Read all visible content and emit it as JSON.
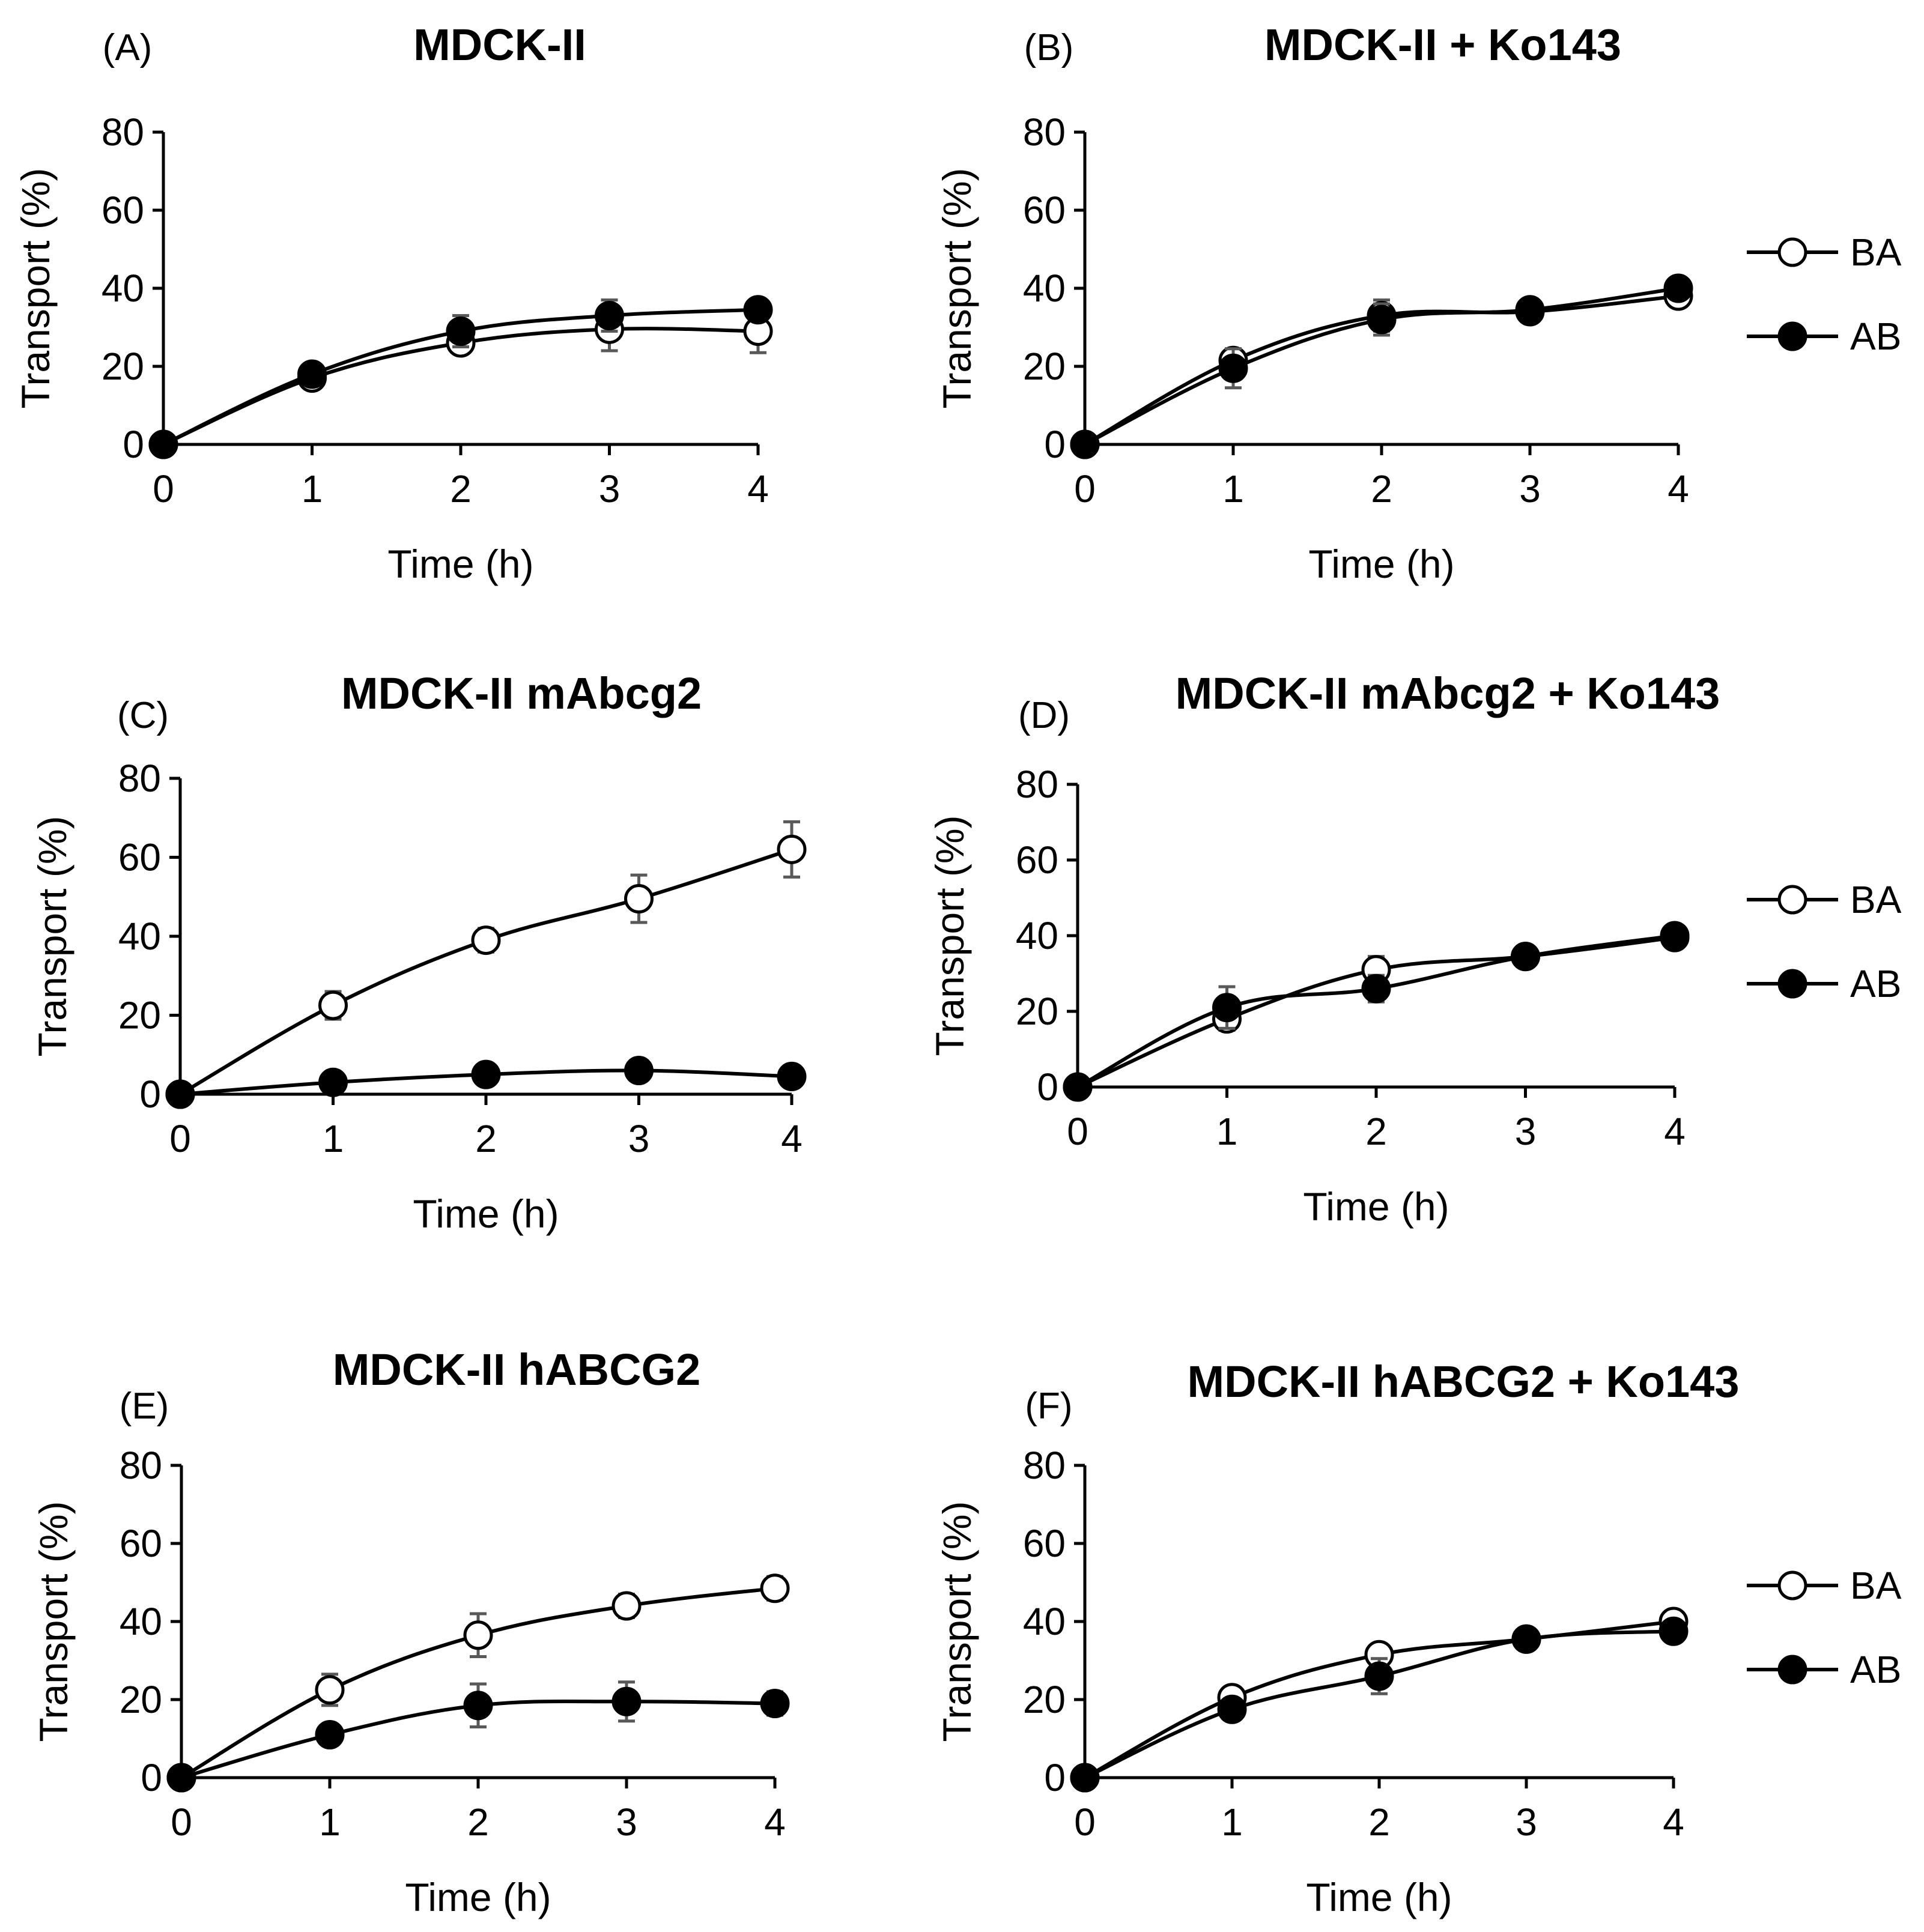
{
  "chart_data": [
    {
      "type": "line",
      "panel": "(A)",
      "title": "MDCK-II",
      "xlabel": "Time (h)",
      "ylabel": "Transport (%)",
      "x": [
        0,
        1,
        2,
        3,
        4
      ],
      "xticks": [
        "0",
        "1",
        "2",
        "3",
        "4"
      ],
      "yticks": [
        "0",
        "20",
        "40",
        "60",
        "80"
      ],
      "xlim": [
        0,
        4
      ],
      "ylim": [
        0,
        80
      ],
      "series": [
        {
          "name": "BA",
          "marker": "open-circle",
          "values": [
            0,
            17,
            26,
            29.5,
            29
          ],
          "errors": [
            0,
            1.5,
            2.5,
            5.5,
            5.5
          ]
        },
        {
          "name": "AB",
          "marker": "filled-circle",
          "values": [
            0,
            18,
            29,
            33,
            34.5
          ],
          "errors": [
            0,
            1,
            4,
            4,
            2
          ]
        }
      ],
      "legend": null
    },
    {
      "type": "line",
      "panel": "(B)",
      "title": "MDCK-II + Ko143",
      "xlabel": "Time (h)",
      "ylabel": "Transport (%)",
      "x": [
        0,
        1,
        2,
        3,
        4
      ],
      "xticks": [
        "0",
        "1",
        "2",
        "3",
        "4"
      ],
      "yticks": [
        "0",
        "20",
        "40",
        "60",
        "80"
      ],
      "xlim": [
        0,
        4
      ],
      "ylim": [
        0,
        80
      ],
      "series": [
        {
          "name": "BA",
          "marker": "open-circle",
          "values": [
            0,
            21.5,
            33,
            34,
            38
          ],
          "errors": [
            0,
            3,
            4,
            1.5,
            1.5
          ]
        },
        {
          "name": "AB",
          "marker": "filled-circle",
          "values": [
            0,
            19.5,
            32,
            34.5,
            40
          ],
          "errors": [
            0,
            5,
            4,
            1.5,
            1
          ]
        }
      ],
      "legend": {
        "position": "right",
        "entries": [
          "BA",
          "AB"
        ]
      }
    },
    {
      "type": "line",
      "panel": "(C)",
      "title": "MDCK-II mAbcg2",
      "xlabel": "Time (h)",
      "ylabel": "Transport (%)",
      "x": [
        0,
        1,
        2,
        3,
        4
      ],
      "xticks": [
        "0",
        "1",
        "2",
        "3",
        "4"
      ],
      "yticks": [
        "0",
        "20",
        "40",
        "60",
        "80"
      ],
      "xlim": [
        0,
        4
      ],
      "ylim": [
        0,
        80
      ],
      "series": [
        {
          "name": "BA",
          "marker": "open-circle",
          "values": [
            0,
            22.5,
            39,
            49.5,
            62
          ],
          "errors": [
            0,
            3.5,
            3,
            6,
            7
          ]
        },
        {
          "name": "AB",
          "marker": "filled-circle",
          "values": [
            0,
            3,
            5,
            6,
            4.5
          ],
          "errors": [
            0,
            1,
            1,
            1,
            1
          ]
        }
      ],
      "legend": null
    },
    {
      "type": "line",
      "panel": "(D)",
      "title": "MDCK-II mAbcg2 + Ko143",
      "xlabel": "Time (h)",
      "ylabel": "Transport (%)",
      "x": [
        0,
        1,
        2,
        3,
        4
      ],
      "xticks": [
        "0",
        "1",
        "2",
        "3",
        "4"
      ],
      "yticks": [
        "0",
        "20",
        "40",
        "60",
        "80"
      ],
      "xlim": [
        0,
        4
      ],
      "ylim": [
        0,
        80
      ],
      "series": [
        {
          "name": "BA",
          "marker": "open-circle",
          "values": [
            0,
            18,
            31,
            34.5,
            39.5
          ],
          "errors": [
            0,
            3,
            3.5,
            1,
            1
          ]
        },
        {
          "name": "AB",
          "marker": "filled-circle",
          "values": [
            0,
            21,
            26,
            34.5,
            40
          ],
          "errors": [
            0,
            5.5,
            3.5,
            1,
            1
          ]
        }
      ],
      "legend": {
        "position": "right",
        "entries": [
          "BA",
          "AB"
        ]
      }
    },
    {
      "type": "line",
      "panel": "(E)",
      "title": "MDCK-II hABCG2",
      "xlabel": "Time (h)",
      "ylabel": "Transport (%)",
      "x": [
        0,
        1,
        2,
        3,
        4
      ],
      "xticks": [
        "0",
        "1",
        "2",
        "3",
        "4"
      ],
      "yticks": [
        "0",
        "20",
        "40",
        "60",
        "80"
      ],
      "xlim": [
        0,
        4
      ],
      "ylim": [
        0,
        80
      ],
      "series": [
        {
          "name": "BA",
          "marker": "open-circle",
          "values": [
            0,
            22.5,
            36.5,
            44,
            48.5
          ],
          "errors": [
            0,
            4,
            5.5,
            3,
            3
          ]
        },
        {
          "name": "AB",
          "marker": "filled-circle",
          "values": [
            0,
            11,
            18.5,
            19.5,
            19
          ],
          "errors": [
            0,
            1.5,
            5.5,
            5,
            3
          ]
        }
      ],
      "legend": null
    },
    {
      "type": "line",
      "panel": "(F)",
      "title": "MDCK-II hABCG2 + Ko143",
      "xlabel": "Time (h)",
      "ylabel": "Transport (%)",
      "x": [
        0,
        1,
        2,
        3,
        4
      ],
      "xticks": [
        "0",
        "1",
        "2",
        "3",
        "4"
      ],
      "yticks": [
        "0",
        "20",
        "40",
        "60",
        "80"
      ],
      "xlim": [
        0,
        4
      ],
      "ylim": [
        0,
        80
      ],
      "series": [
        {
          "name": "BA",
          "marker": "open-circle",
          "values": [
            0,
            20.5,
            31.5,
            35.5,
            40
          ],
          "errors": [
            0,
            2,
            2,
            1,
            1
          ]
        },
        {
          "name": "AB",
          "marker": "filled-circle",
          "values": [
            0,
            17.5,
            26,
            35.5,
            37.5
          ],
          "errors": [
            0,
            1.5,
            4.5,
            1.5,
            1
          ]
        }
      ],
      "legend": {
        "position": "right",
        "entries": [
          "BA",
          "AB"
        ]
      }
    }
  ]
}
